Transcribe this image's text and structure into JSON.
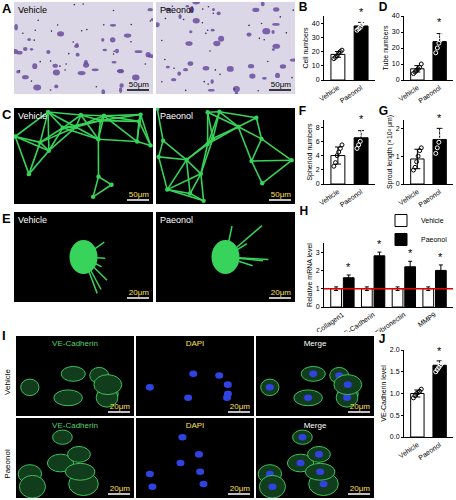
{
  "chart_data": [
    {
      "type": "bar",
      "title": "B",
      "categories": [
        "Vehicle",
        "Paeonol"
      ],
      "values": [
        18,
        38
      ],
      "error": [
        2,
        2.5
      ],
      "points": [
        [
          15,
          16,
          17,
          19,
          20,
          21
        ],
        [
          35,
          36,
          37,
          39,
          40,
          42
        ]
      ],
      "colors": [
        "#ffffff",
        "#000000"
      ],
      "marker": "open circle",
      "ylabel": "Cell numbers",
      "ylim": [
        0,
        45
      ],
      "yticks": [
        0,
        10,
        20,
        30,
        40
      ],
      "grid": false,
      "annotations": [
        {
          "category": "Paeonol",
          "text": "*"
        }
      ]
    },
    {
      "type": "bar",
      "title": "D",
      "categories": [
        "Vehicle",
        "Paeonol"
      ],
      "values": [
        7,
        24
      ],
      "error": [
        2,
        5
      ],
      "points": [
        [
          4,
          5,
          6,
          7,
          8,
          10
        ],
        [
          17,
          20,
          23,
          25,
          28,
          31
        ]
      ],
      "colors": [
        "#ffffff",
        "#000000"
      ],
      "marker": "open circle",
      "ylabel": "Tube numbers",
      "ylim": [
        0,
        40
      ],
      "yticks": [
        0,
        10,
        20,
        30,
        40
      ],
      "grid": false,
      "annotations": [
        {
          "category": "Paeonol",
          "text": "*"
        }
      ]
    },
    {
      "type": "bar",
      "title": "F",
      "categories": [
        "Vehicle",
        "Paeonol"
      ],
      "values": [
        4,
        6.5
      ],
      "error": [
        1.2,
        1
      ],
      "points": [
        [
          2.5,
          3,
          4,
          4.5,
          5,
          5.5
        ],
        [
          5,
          5.5,
          6,
          7,
          7.5,
          8
        ]
      ],
      "colors": [
        "#ffffff",
        "#000000"
      ],
      "marker": "open circle",
      "ylabel": "Spheriod numbers",
      "ylim": [
        0,
        9
      ],
      "yticks": [
        0,
        2,
        4,
        6,
        8
      ],
      "grid": false,
      "annotations": [
        {
          "category": "Paeonol",
          "text": "*"
        }
      ]
    },
    {
      "type": "bar",
      "title": "G",
      "categories": [
        "Vehicle",
        "Paeonol"
      ],
      "values": [
        0.9,
        1.6
      ],
      "error": [
        0.35,
        0.4
      ],
      "points": [
        [
          0.5,
          0.6,
          0.8,
          1.0,
          1.2,
          1.3
        ],
        [
          1.1,
          1.3,
          1.5,
          1.7,
          1.9,
          2.1
        ]
      ],
      "colors": [
        "#ffffff",
        "#000000"
      ],
      "marker": "open circle",
      "ylabel": "Sprout length (×10² μm)",
      "ylim": [
        0,
        2.3
      ],
      "yticks": [
        0,
        1,
        2
      ],
      "grid": false,
      "annotations": [
        {
          "category": "Paeonol",
          "text": "*"
        }
      ]
    },
    {
      "type": "bar",
      "title": "H",
      "categories": [
        "Collagen1",
        "VE-Cadherin",
        "Fibronectin",
        "MMP9"
      ],
      "series": [
        {
          "name": "Vehicle",
          "color": "#ffffff",
          "values": [
            1,
            1,
            1,
            1
          ],
          "error": [
            0.1,
            0.1,
            0.1,
            0.1
          ]
        },
        {
          "name": "Paeonol",
          "color": "#000000",
          "values": [
            1.6,
            2.8,
            2.2,
            2.0
          ],
          "error": [
            0.15,
            0.2,
            0.3,
            0.3
          ]
        }
      ],
      "hline": {
        "y": 1,
        "color": "#e00000"
      },
      "ylabel": "Relative mRNA level",
      "ylim": [
        0,
        3.5
      ],
      "yticks": [
        0,
        1,
        2,
        3
      ],
      "grid": false,
      "legend": "top",
      "annotations": [
        {
          "category": "Collagen1",
          "series": "Paeonol",
          "text": "*"
        },
        {
          "category": "VE-Cadherin",
          "series": "Paeonol",
          "text": "*"
        },
        {
          "category": "Fibronectin",
          "series": "Paeonol",
          "text": "*"
        },
        {
          "category": "MMP9",
          "series": "Paeonol",
          "text": "*"
        }
      ]
    },
    {
      "type": "bar",
      "title": "J",
      "categories": [
        "Vehicle",
        "Paeonol"
      ],
      "values": [
        1.0,
        1.65
      ],
      "error": [
        0.08,
        0.1
      ],
      "points": [
        [
          0.9,
          0.95,
          1.0,
          1.02,
          1.05,
          1.1
        ],
        [
          1.5,
          1.55,
          1.6,
          1.65,
          1.7,
          1.8
        ]
      ],
      "colors": [
        "#ffffff",
        "#000000"
      ],
      "marker": "open circle",
      "ylabel": "VE-Cadherin level",
      "ylim": [
        0,
        2
      ],
      "yticks": [
        {
          "value": 0,
          "label": "0.0"
        },
        0.5,
        {
          "value": 1,
          "label": "1.0"
        },
        1.5,
        {
          "value": 2,
          "label": "2.0"
        }
      ],
      "grid": false,
      "annotations": [
        {
          "category": "Paeonol",
          "text": "*"
        }
      ]
    }
  ],
  "image_panels": [
    {
      "label": "A",
      "kind": "brightfield",
      "images": [
        {
          "caption": "Vehicle",
          "scale_bar": "50μm"
        },
        {
          "caption": "Paeonol",
          "scale_bar": "50μm"
        }
      ]
    },
    {
      "label": "C",
      "kind": "network",
      "images": [
        {
          "caption": "Vehicle",
          "scale_bar": "50μm"
        },
        {
          "caption": "Paeonol",
          "scale_bar": "50μm"
        }
      ]
    },
    {
      "label": "E",
      "kind": "spheroid",
      "images": [
        {
          "caption": "Vehicle",
          "scale_bar": "20μm"
        },
        {
          "caption": "Paeonol",
          "scale_bar": "20μm"
        }
      ]
    },
    {
      "label": "I",
      "kind": "stain",
      "columns": [
        "VE-Cadherin",
        "DAPI",
        "Merge"
      ],
      "rows": [
        "Vehicle",
        "Paeonol"
      ],
      "scale_bar": "20μm"
    }
  ]
}
